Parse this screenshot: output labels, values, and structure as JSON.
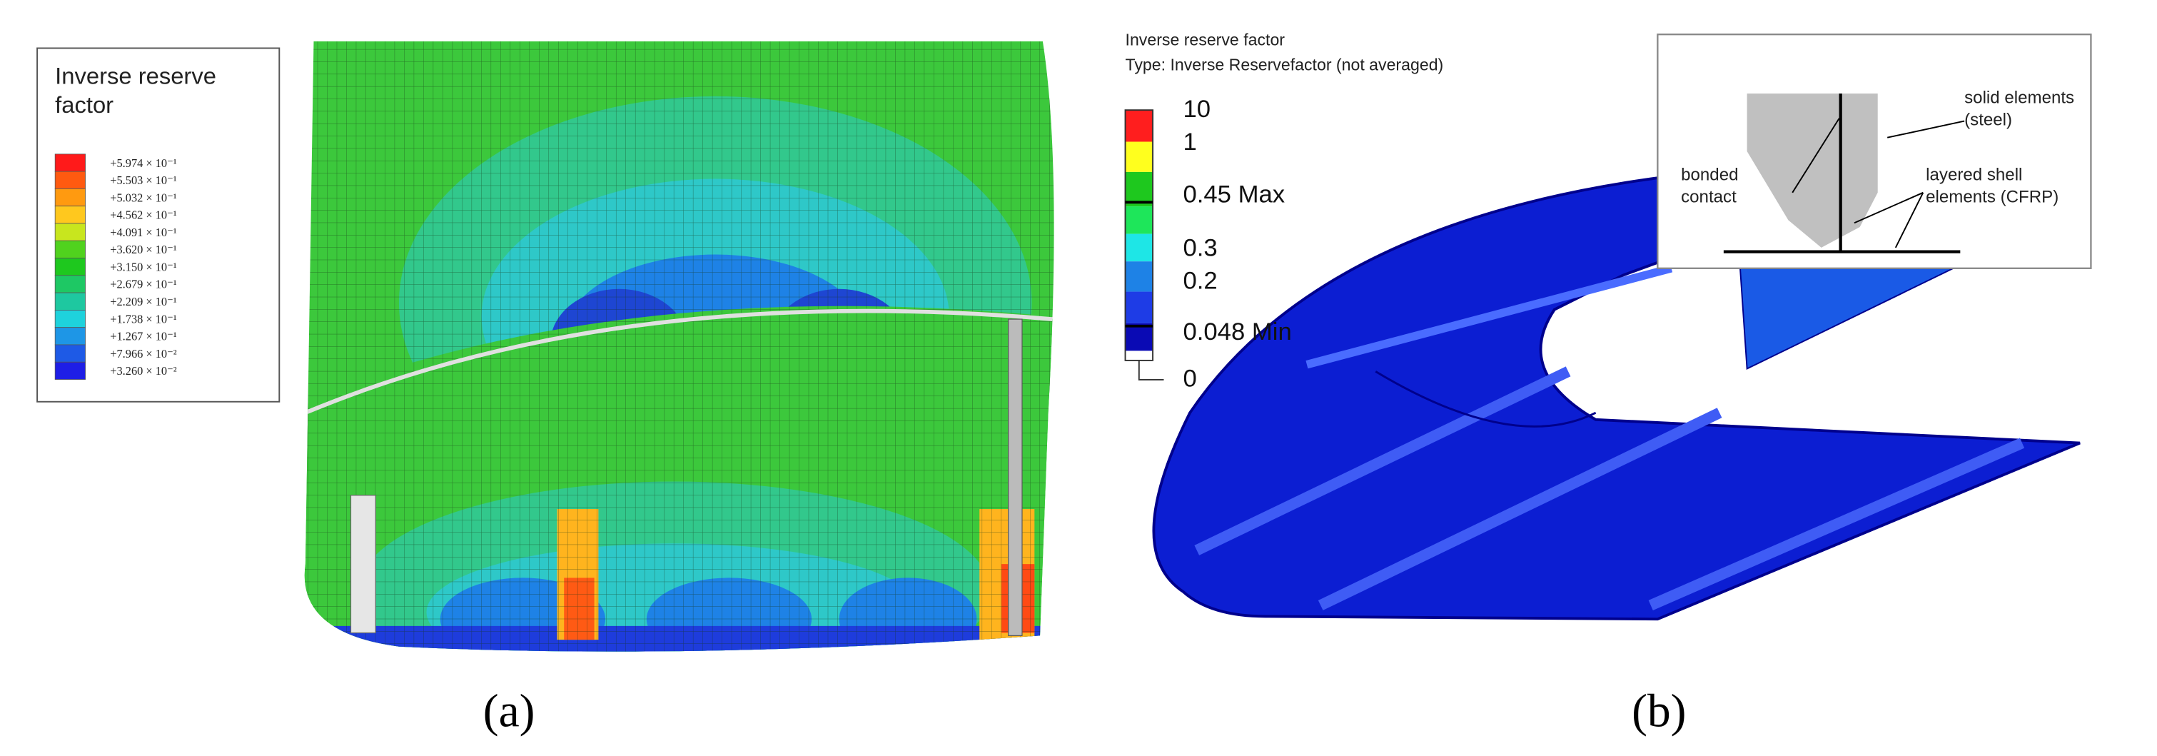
{
  "panel_a": {
    "legend": {
      "title": "Inverse reserve factor",
      "labels": [
        "+5.974 × 10⁻¹",
        "+5.503 × 10⁻¹",
        "+5.032 × 10⁻¹",
        "+4.562 × 10⁻¹",
        "+4.091 × 10⁻¹",
        "+3.620 × 10⁻¹",
        "+3.150 × 10⁻¹",
        "+2.679 × 10⁻¹",
        "+2.209 × 10⁻¹",
        "+1.738 × 10⁻¹",
        "+1.267 × 10⁻¹",
        "+7.966 × 10⁻²",
        "+3.260 × 10⁻²"
      ],
      "colors": [
        "#ff1a1a",
        "#ff5a10",
        "#ff9a10",
        "#ffc81e",
        "#c8e61e",
        "#50d21e",
        "#1ec81e",
        "#1ec864",
        "#1ec8a0",
        "#1ed2dc",
        "#1e96e6",
        "#1e5ae6",
        "#1e1ee6"
      ]
    },
    "caption": "(a)"
  },
  "panel_b": {
    "legend": {
      "title": "Inverse reserve factor",
      "type": "Type: Inverse Reservefactor (not averaged)",
      "labels": [
        "10",
        "1",
        "0.45 Max",
        "0.3",
        "0.2",
        "0.048 Min",
        "0"
      ]
    },
    "inset": {
      "solid": "solid elements (steel)",
      "bonded": "bonded contact",
      "shell": "layered shell elements (CFRP)"
    },
    "caption": "(b)"
  }
}
